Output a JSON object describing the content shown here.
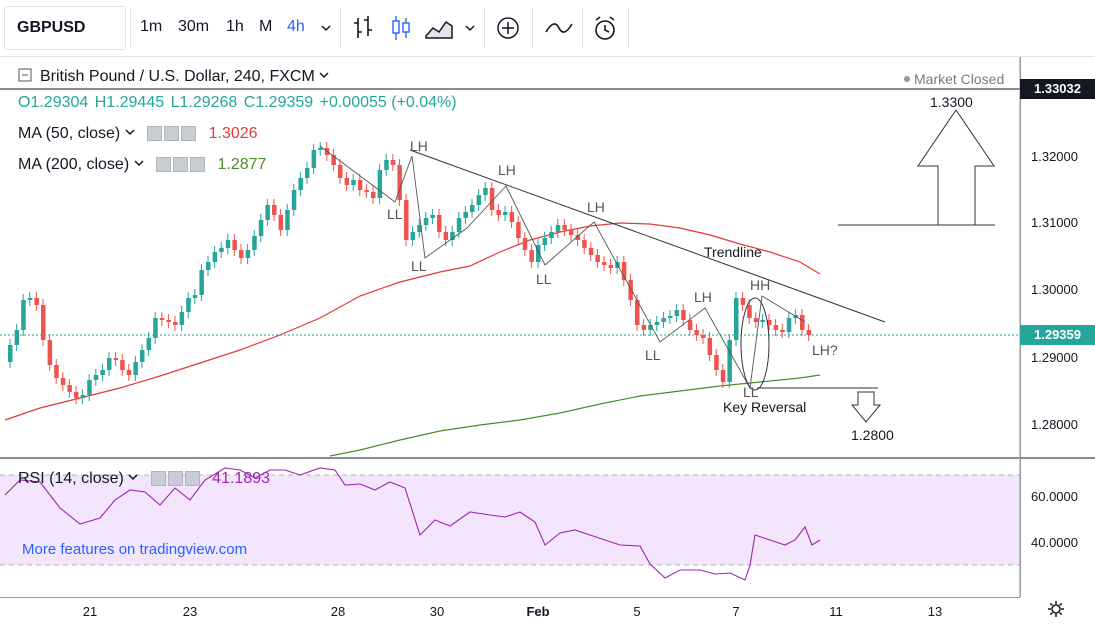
{
  "toolbar": {
    "symbol": "GBPUSD",
    "timeframes": [
      "1m",
      "30m",
      "1h",
      "M",
      "4h"
    ],
    "active_timeframe": "4h"
  },
  "legend": {
    "title": "British Pound / U.S. Dollar, 240, FXCM",
    "market_status": "Market Closed",
    "open": "O1.29304",
    "high": "H1.29445",
    "low": "L1.29268",
    "close": "C1.29359",
    "change": "+0.00055 (+0.04%)",
    "ma50_label": "MA (50, close)",
    "ma50_value": "1.3026",
    "ma200_label": "MA (200, close)",
    "ma200_value": "1.2877",
    "rsi_label": "RSI (14, close)",
    "rsi_value": "41.1893",
    "promo": "More features on tradingview.com"
  },
  "price_axis": {
    "labels": [
      "1.32000",
      "1.31000",
      "1.30000",
      "1.29000",
      "1.28000"
    ],
    "top_tag": "1.33032",
    "last_tag": "1.29359",
    "rsi_labels": [
      "60.0000",
      "40.0000"
    ]
  },
  "time_axis": [
    "21",
    "23",
    "28",
    "30",
    "Feb",
    "5",
    "7",
    "11",
    "13"
  ],
  "annotations": {
    "target_up": "1.3300",
    "target_down": "1.2800",
    "trendline": "Trendline",
    "key_reversal": "Key Reversal",
    "lh": "LH",
    "ll": "LL",
    "hh": "HH",
    "lh_q": "LH?"
  },
  "colors": {
    "accent": "#2962ff",
    "up": "#26a69a",
    "down": "#ef5350",
    "ma50": "#e53935",
    "ma200": "#4c8c2b",
    "rsi": "#9c27b0",
    "rsi_band": "#f3e5fc"
  },
  "chart_data": {
    "type": "candlestick",
    "last_price": 1.29359,
    "ylim": [
      1.275,
      1.334
    ]
  }
}
